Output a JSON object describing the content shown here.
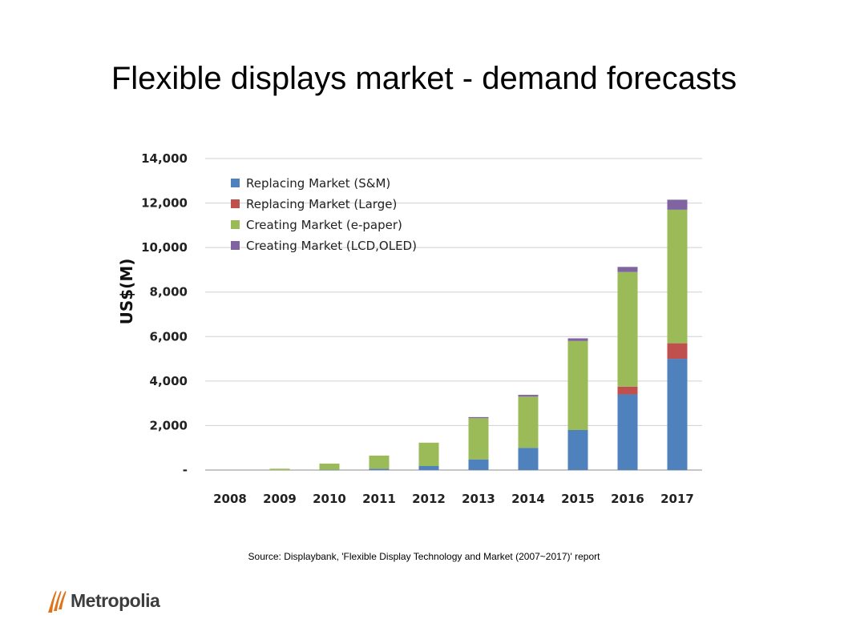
{
  "title": "Flexible displays market - demand forecasts",
  "source": "Source: Displaybank, 'Flexible Display Technology and Market (2007~2017)' report",
  "logo": {
    "text": "Metropolia",
    "color": "#e0731a"
  },
  "chart_data": {
    "type": "bar",
    "stacked": true,
    "ylabel": "US$(M)",
    "ylim": [
      0,
      14000
    ],
    "yticks": [
      0,
      2000,
      4000,
      6000,
      8000,
      10000,
      12000,
      14000
    ],
    "ytick_labels": [
      "-",
      "2,000",
      "4,000",
      "6,000",
      "8,000",
      "10,000",
      "12,000",
      "14,000"
    ],
    "grid": "horizontal",
    "legend": "top-left",
    "categories": [
      "2008",
      "2009",
      "2010",
      "2011",
      "2012",
      "2013",
      "2014",
      "2015",
      "2016",
      "2017"
    ],
    "series": [
      {
        "name": "Replacing Market  (S&M)",
        "color": "#4f81bd",
        "values": [
          0,
          0,
          10,
          60,
          180,
          480,
          1000,
          1800,
          3400,
          5000
        ]
      },
      {
        "name": "Replacing Market  (Large)",
        "color": "#c0504d",
        "values": [
          0,
          0,
          0,
          0,
          0,
          0,
          0,
          0,
          350,
          700
        ]
      },
      {
        "name": "Creating Market (e-paper)",
        "color": "#9bbb59",
        "values": [
          0,
          60,
          280,
          590,
          1050,
          1850,
          2300,
          4000,
          5150,
          6000
        ]
      },
      {
        "name": "Creating Market (LCD,OLED)",
        "color": "#8064a2",
        "values": [
          0,
          0,
          0,
          0,
          0,
          50,
          80,
          120,
          230,
          450
        ]
      }
    ]
  }
}
